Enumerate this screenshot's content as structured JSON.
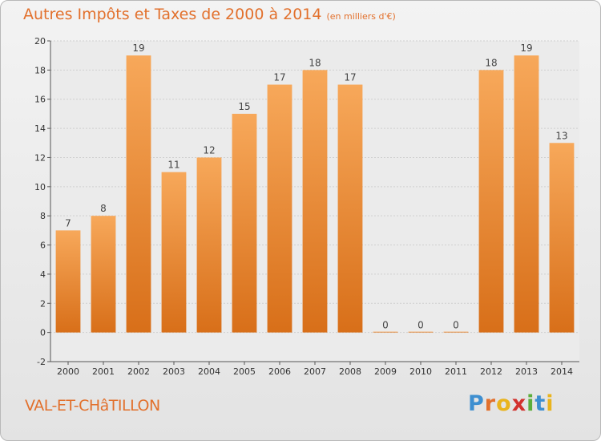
{
  "header": {
    "title": "Autres Impôts et Taxes de 2000 à 2014",
    "subtitle": "(en milliers d'€)"
  },
  "footer": {
    "town": "VAL-ET-CHâTILLON",
    "logo_letters": [
      "P",
      "r",
      "o",
      "x",
      "i",
      "t",
      "i"
    ],
    "logo_colors": [
      "#3e8fd0",
      "#e2702c",
      "#e9b41e",
      "#d2312d",
      "#5cae3c",
      "#3e8fd0",
      "#e9b41e"
    ]
  },
  "chart_data": {
    "type": "bar",
    "title": "Autres Impôts et Taxes de 2000 à 2014",
    "subtitle": "(en milliers d'€)",
    "categories": [
      "2000",
      "2001",
      "2002",
      "2003",
      "2004",
      "2005",
      "2006",
      "2007",
      "2008",
      "2009",
      "2010",
      "2011",
      "2012",
      "2013",
      "2014"
    ],
    "values": [
      7,
      8,
      19,
      11,
      12,
      15,
      17,
      18,
      17,
      0,
      0,
      0,
      18,
      19,
      13
    ],
    "data_labels": [
      "7",
      "8",
      "19",
      "11",
      "12",
      "15",
      "17",
      "18",
      "17",
      "0",
      "0",
      "0",
      "18",
      "19",
      "13"
    ],
    "yticks": [
      -2,
      0,
      2,
      4,
      6,
      8,
      10,
      12,
      14,
      16,
      18,
      20
    ],
    "ylim": [
      -2,
      20
    ],
    "xlabel": "",
    "ylabel": "",
    "grid": true,
    "bar_color_top": "#f7a85a",
    "bar_color_bottom": "#d86f19",
    "legend": "none"
  }
}
